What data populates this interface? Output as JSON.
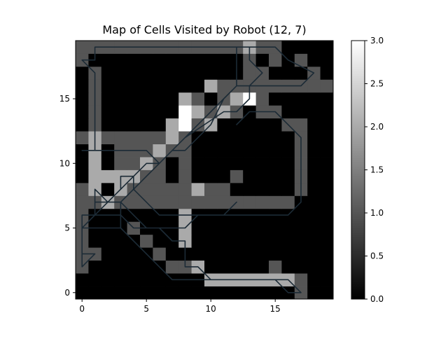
{
  "chart_data": {
    "type": "heatmap",
    "title": "Map of Cells Visited by Robot (12, 7)",
    "xlabel": "",
    "ylabel": "",
    "x_ticks": [
      0,
      5,
      10,
      15
    ],
    "y_ticks": [
      0,
      5,
      10,
      15
    ],
    "xlim": [
      -0.5,
      19.5
    ],
    "ylim": [
      -0.5,
      19.5
    ],
    "grid_size": [
      20,
      20
    ],
    "origin": "lower",
    "colormap": "gray",
    "color_range": [
      0.0,
      3.0
    ],
    "colorbar_ticks": [
      "0.0",
      "0.5",
      "1.0",
      "1.5",
      "2.0",
      "2.5",
      "3.0"
    ],
    "path_color": "#1c2b36",
    "cells": [
      {
        "row": 0,
        "values": [
          0,
          0,
          0,
          0,
          0,
          0,
          0,
          0,
          0,
          0,
          0,
          0,
          0,
          0,
          0,
          0,
          0,
          1,
          0,
          0
        ]
      },
      {
        "row": 1,
        "values": [
          0,
          0,
          0,
          0,
          0,
          0,
          0,
          0,
          0,
          0,
          2,
          2,
          2,
          2,
          2,
          2,
          2,
          1,
          0,
          0
        ]
      },
      {
        "row": 2,
        "values": [
          1,
          0,
          0,
          0,
          0,
          0,
          0,
          1,
          1,
          2,
          0,
          0,
          0,
          0,
          0,
          1,
          0,
          0,
          0,
          0
        ]
      },
      {
        "row": 3,
        "values": [
          1,
          1,
          0,
          0,
          0,
          0,
          1,
          0,
          0,
          0,
          0,
          0,
          0,
          0,
          0,
          0,
          0,
          0,
          0,
          0
        ]
      },
      {
        "row": 4,
        "values": [
          1,
          0,
          0,
          0,
          0,
          1,
          0,
          0,
          2,
          0,
          0,
          0,
          0,
          0,
          0,
          0,
          0,
          0,
          0,
          0
        ]
      },
      {
        "row": 5,
        "values": [
          1,
          0,
          0,
          0,
          1,
          0,
          0,
          0,
          2,
          0,
          0,
          0,
          0,
          0,
          0,
          0,
          0,
          0,
          0,
          0
        ]
      },
      {
        "row": 6,
        "values": [
          1,
          0,
          0,
          0,
          0,
          0,
          0,
          0,
          2,
          0,
          0,
          0,
          0,
          0,
          0,
          0,
          0,
          0,
          0,
          0
        ]
      },
      {
        "row": 7,
        "values": [
          1,
          1,
          2,
          1,
          1,
          1,
          1,
          1,
          1,
          1,
          1,
          1,
          1,
          1,
          1,
          1,
          1,
          0,
          0,
          0
        ]
      },
      {
        "row": 8,
        "values": [
          1,
          2,
          0,
          2,
          1,
          1,
          1,
          1,
          1,
          2,
          1,
          1,
          0,
          0,
          0,
          0,
          0,
          1,
          0,
          0
        ]
      },
      {
        "row": 9,
        "values": [
          0,
          2,
          2,
          2,
          2,
          1,
          1,
          0,
          1,
          0,
          0,
          0,
          1,
          0,
          0,
          0,
          0,
          1,
          0,
          0
        ]
      },
      {
        "row": 10,
        "values": [
          0,
          2,
          0,
          1,
          1,
          2,
          1,
          0,
          1,
          0,
          0,
          0,
          0,
          0,
          0,
          0,
          0,
          1,
          0,
          0
        ]
      },
      {
        "row": 11,
        "values": [
          0,
          2,
          0,
          1,
          1,
          1,
          2,
          1,
          1,
          0,
          0,
          0,
          0,
          0,
          0,
          0,
          0,
          1,
          0,
          0
        ]
      },
      {
        "row": 12,
        "values": [
          1,
          2,
          1,
          1,
          1,
          1,
          1,
          2,
          1,
          0,
          0,
          0,
          0,
          0,
          0,
          0,
          0,
          1,
          0,
          0
        ]
      },
      {
        "row": 13,
        "values": [
          0,
          1,
          0,
          0,
          0,
          0,
          0,
          2,
          3,
          1,
          2,
          0,
          0,
          0,
          0,
          0,
          1,
          1,
          0,
          0
        ]
      },
      {
        "row": 14,
        "values": [
          0,
          1,
          0,
          0,
          0,
          0,
          0,
          0,
          3,
          2,
          1,
          2,
          1,
          0,
          1,
          1,
          0,
          0,
          0,
          0
        ]
      },
      {
        "row": 15,
        "values": [
          0,
          1,
          0,
          0,
          0,
          0,
          0,
          0,
          2,
          1,
          0,
          1,
          2,
          3,
          1,
          0,
          0,
          0,
          0,
          0
        ]
      },
      {
        "row": 16,
        "values": [
          0,
          1,
          0,
          0,
          0,
          0,
          0,
          0,
          0,
          0,
          2,
          1,
          1,
          1,
          1,
          1,
          1,
          1,
          1,
          1
        ]
      },
      {
        "row": 17,
        "values": [
          0,
          1,
          0,
          0,
          0,
          0,
          0,
          0,
          0,
          0,
          0,
          0,
          0,
          1,
          1,
          0,
          0,
          0,
          1,
          0
        ]
      },
      {
        "row": 18,
        "values": [
          1,
          0,
          0,
          0,
          0,
          0,
          0,
          0,
          0,
          0,
          0,
          0,
          0,
          1,
          0,
          1,
          0,
          1,
          0,
          0
        ]
      },
      {
        "row": 19,
        "values": [
          1,
          1,
          1,
          1,
          1,
          1,
          1,
          1,
          1,
          1,
          1,
          1,
          1,
          2,
          1,
          1,
          0,
          0,
          0,
          0
        ]
      }
    ],
    "path": [
      [
        12,
        7
      ],
      [
        11,
        6
      ],
      [
        6,
        6
      ],
      [
        4,
        8
      ],
      [
        4,
        9
      ],
      [
        3,
        9
      ],
      [
        3,
        8
      ],
      [
        2,
        7
      ],
      [
        1,
        7
      ],
      [
        1,
        6
      ],
      [
        0,
        5
      ],
      [
        5,
        10
      ],
      [
        6,
        10
      ],
      [
        7,
        11
      ],
      [
        8,
        12
      ],
      [
        9,
        13
      ],
      [
        10,
        14
      ],
      [
        11,
        15
      ],
      [
        12,
        16
      ],
      [
        14,
        16
      ],
      [
        15,
        16
      ],
      [
        17,
        16
      ],
      [
        18,
        17
      ],
      [
        16,
        18
      ],
      [
        15,
        19
      ],
      [
        1,
        19
      ],
      [
        1,
        18
      ],
      [
        0,
        18
      ],
      [
        1,
        17
      ],
      [
        1,
        11
      ],
      [
        0,
        11
      ],
      [
        5,
        11
      ],
      [
        6,
        10
      ],
      [
        7,
        11
      ],
      [
        8,
        12
      ],
      [
        11,
        14
      ],
      [
        12,
        14
      ],
      [
        13,
        15
      ],
      [
        13,
        16
      ],
      [
        14,
        17
      ],
      [
        13,
        18
      ],
      [
        13,
        19
      ],
      [
        12,
        19
      ],
      [
        12,
        16
      ],
      [
        11,
        15
      ],
      [
        10,
        13
      ],
      [
        9,
        12
      ],
      [
        8,
        11
      ],
      [
        7,
        11
      ],
      [
        6,
        10
      ],
      [
        5,
        9
      ],
      [
        4,
        8
      ],
      [
        3,
        7
      ],
      [
        2,
        7
      ],
      [
        1,
        8
      ],
      [
        1,
        6
      ],
      [
        0,
        6
      ],
      [
        0,
        5
      ],
      [
        1,
        5
      ],
      [
        2,
        5
      ],
      [
        3,
        5
      ],
      [
        3,
        6
      ],
      [
        3,
        7
      ],
      [
        4,
        6
      ],
      [
        5,
        5
      ],
      [
        6,
        5
      ],
      [
        7,
        4
      ],
      [
        8,
        4
      ],
      [
        8,
        3
      ],
      [
        8,
        2
      ],
      [
        9,
        2
      ],
      [
        10,
        1
      ],
      [
        16,
        1
      ],
      [
        17,
        0
      ],
      [
        16,
        0
      ],
      [
        15,
        1
      ],
      [
        14,
        1
      ],
      [
        10,
        1
      ],
      [
        9,
        1
      ],
      [
        7,
        1
      ],
      [
        6,
        2
      ],
      [
        5,
        3
      ],
      [
        4,
        4
      ],
      [
        3,
        5
      ],
      [
        2,
        5
      ],
      [
        0,
        5
      ],
      [
        0,
        4
      ],
      [
        0,
        2
      ],
      [
        1,
        3
      ],
      [
        0,
        3
      ],
      [
        0,
        6
      ],
      [
        1,
        6
      ],
      [
        3,
        6
      ],
      [
        4,
        5
      ],
      [
        8,
        5
      ],
      [
        9,
        6
      ],
      [
        16,
        6
      ],
      [
        17,
        7
      ],
      [
        17,
        12
      ],
      [
        16,
        13
      ],
      [
        15,
        14
      ],
      [
        13,
        14
      ],
      [
        12,
        13
      ]
    ]
  }
}
